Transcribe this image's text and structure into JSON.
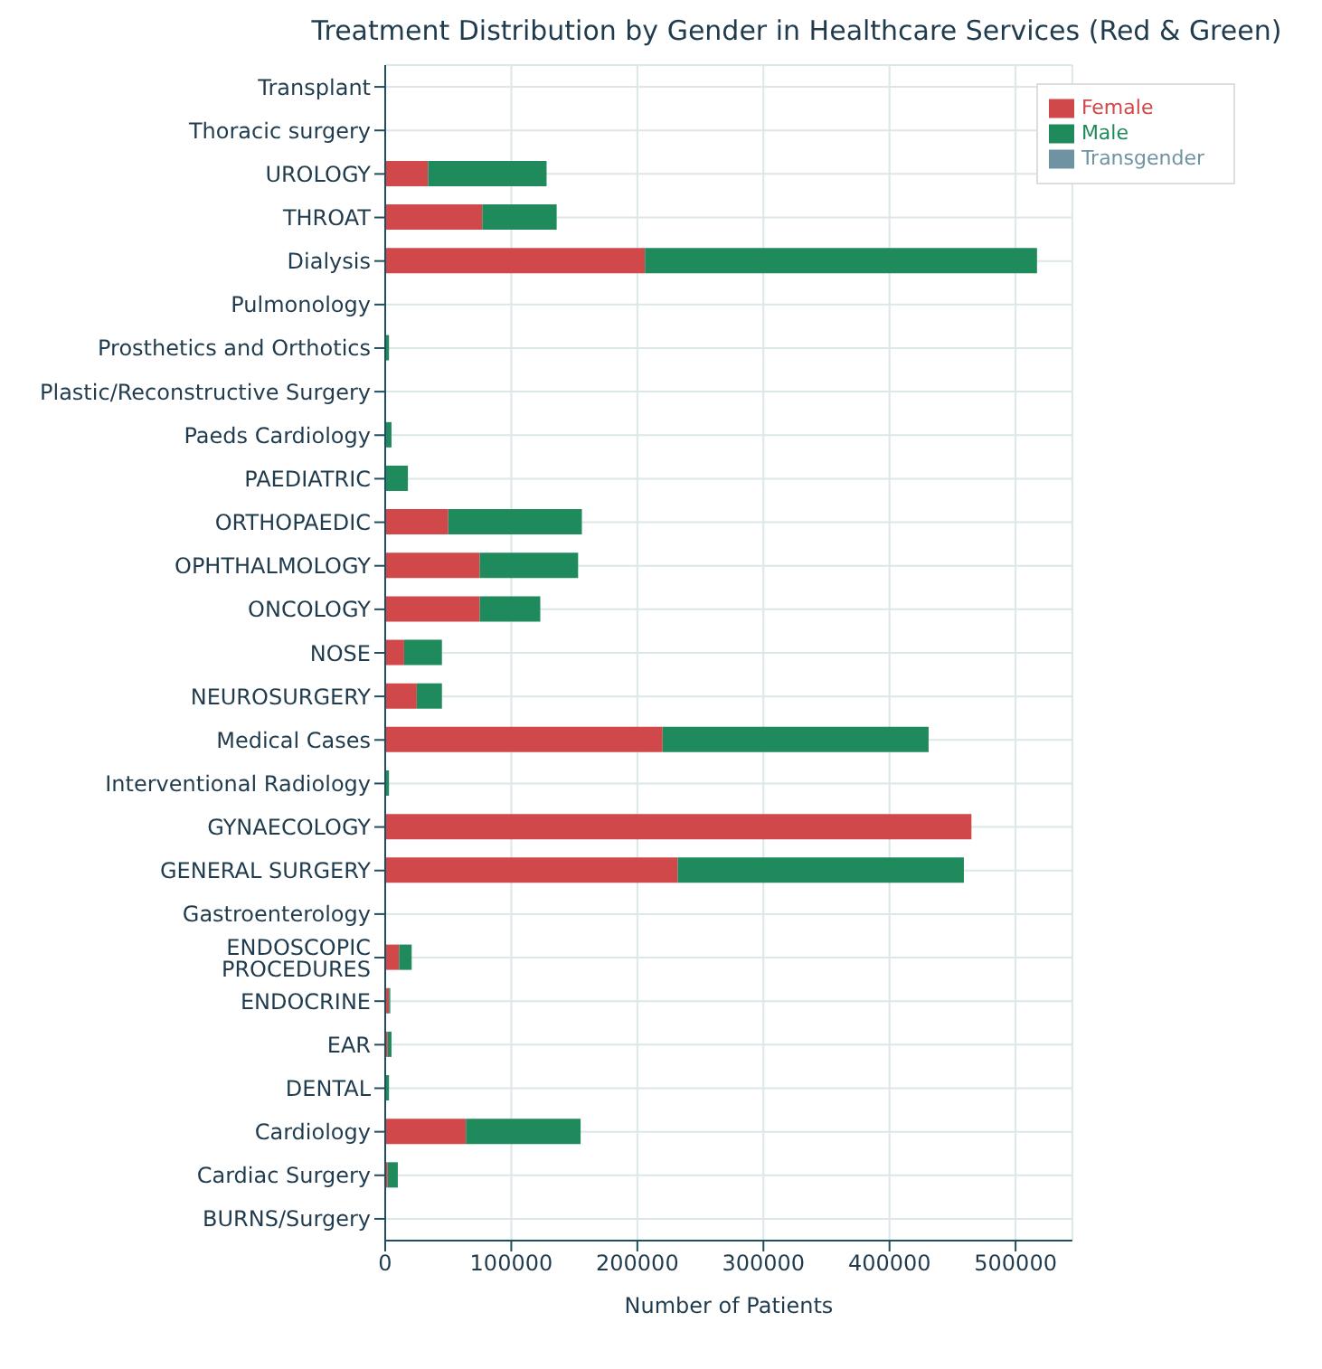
{
  "chart_data": {
    "type": "bar",
    "orientation": "horizontal",
    "stacked": true,
    "title": "Treatment Distribution by Gender in Healthcare Services (Red & Green)",
    "xlabel": "Number of Patients",
    "categories": [
      "Transplant",
      "Thoracic surgery",
      "UROLOGY",
      "THROAT",
      "Dialysis",
      "Pulmonology",
      "Prosthetics and Orthotics",
      "Plastic/Reconstructive Surgery",
      "Paeds Cardiology",
      "PAEDIATRIC",
      "ORTHOPAEDIC",
      "OPHTHALMOLOGY",
      "ONCOLOGY",
      "NOSE",
      "NEUROSURGERY",
      "Medical Cases",
      "Interventional Radiology",
      "GYNAECOLOGY",
      "GENERAL SURGERY",
      "Gastroenterology",
      "ENDOSCOPIC PROCEDURES",
      "ENDOCRINE",
      "EAR",
      "DENTAL",
      "Cardiology",
      "Cardiac Surgery",
      "BURNS/Surgery"
    ],
    "series": [
      {
        "name": "Female",
        "color": "#d0484a",
        "values": [
          0,
          0,
          34000,
          77000,
          206000,
          0,
          0,
          0,
          0,
          0,
          50000,
          75000,
          75000,
          15000,
          25000,
          220000,
          0,
          465000,
          232000,
          0,
          11000,
          3000,
          2000,
          0,
          64000,
          2000,
          0
        ]
      },
      {
        "name": "Male",
        "color": "#1f8a5b",
        "values": [
          0,
          0,
          94000,
          59000,
          311000,
          0,
          3000,
          0,
          5000,
          18000,
          106000,
          78000,
          48000,
          30000,
          20000,
          211000,
          3000,
          0,
          227000,
          0,
          10000,
          1000,
          3000,
          3000,
          91000,
          8000,
          0
        ]
      },
      {
        "name": "Transgender",
        "color": "#6f93a3",
        "values": [
          0,
          0,
          0,
          0,
          0,
          0,
          0,
          0,
          0,
          0,
          0,
          0,
          0,
          0,
          0,
          0,
          0,
          0,
          0,
          0,
          0,
          0,
          0,
          0,
          0,
          0,
          0
        ]
      }
    ],
    "xlim": [
      0,
      545000
    ],
    "xticks": [
      0,
      100000,
      200000,
      300000,
      400000,
      500000
    ],
    "grid": true,
    "legend": "top right"
  }
}
